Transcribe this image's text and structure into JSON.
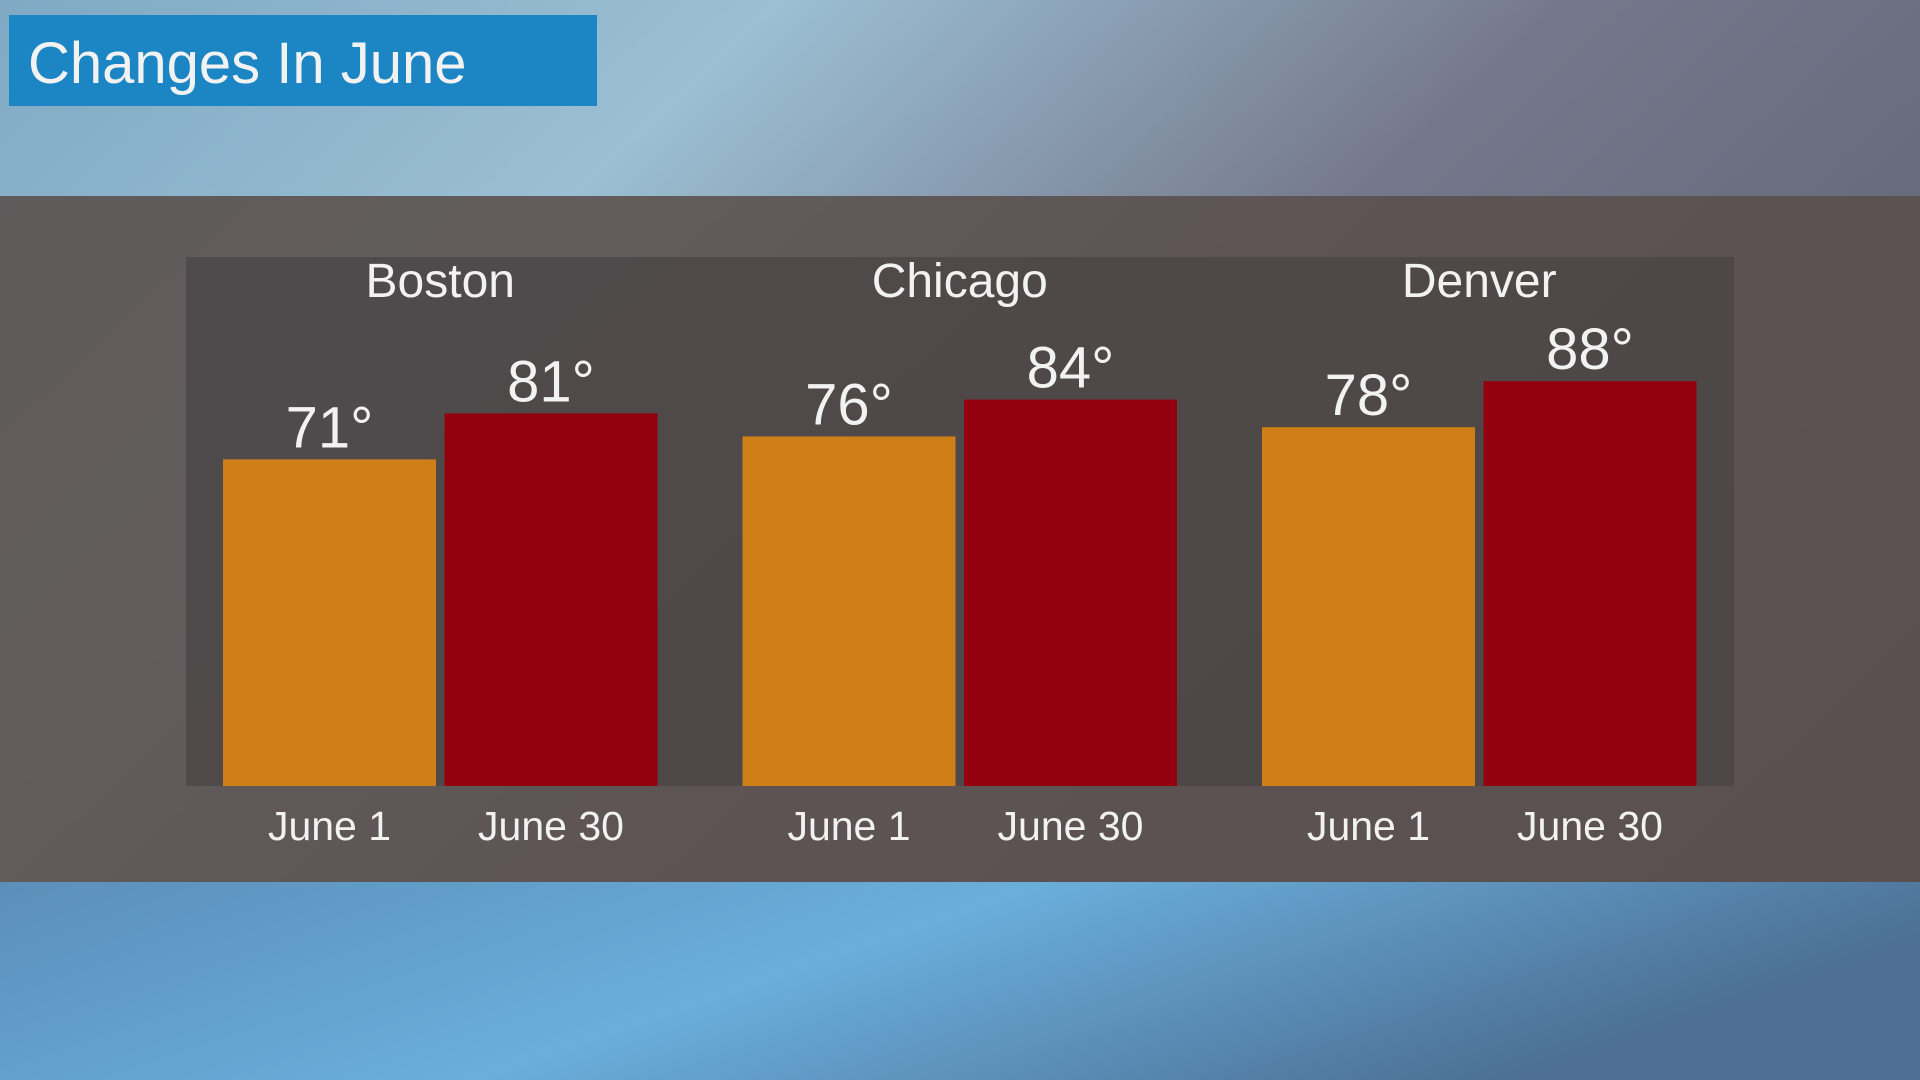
{
  "chart_data": {
    "type": "bar",
    "title": "Changes In June",
    "categories": [
      "Boston",
      "Chicago",
      "Denver"
    ],
    "series": [
      {
        "name": "June 1",
        "color": "#cf7f17",
        "values": [
          71,
          76,
          78
        ],
        "value_labels": [
          "71°",
          "76°",
          "78°"
        ]
      },
      {
        "name": "June 30",
        "color": "#93000e",
        "values": [
          81,
          84,
          88
        ],
        "value_labels": [
          "81°",
          "84°",
          "88°"
        ]
      }
    ]
  }
}
